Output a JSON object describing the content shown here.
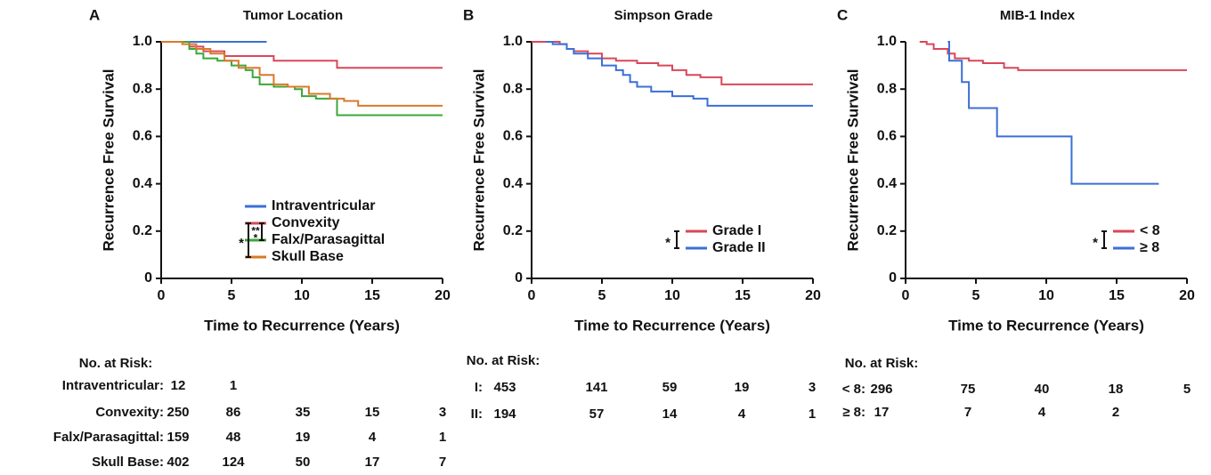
{
  "chart_data": [
    {
      "type": "step",
      "panel": "A",
      "title": "Tumor Location",
      "xlabel": "Time to Recurrence (Years)",
      "ylabel": "Recurrence Free Survival",
      "xlim": [
        0,
        20
      ],
      "ylim": [
        0,
        1
      ],
      "xticks": [
        0,
        5,
        10,
        15,
        20
      ],
      "yticks": [
        0,
        0.2,
        0.4,
        0.6,
        0.8,
        {
          "value": 1,
          "label": "1.0"
        }
      ],
      "legend": "lower right",
      "annotations": [
        "*",
        "**",
        "*"
      ],
      "series": [
        {
          "name": "Intraventricular",
          "color": "#3a6fd8",
          "x": [
            0,
            7.5
          ],
          "values": [
            1,
            1
          ]
        },
        {
          "name": "Convexity",
          "color": "#d9475a",
          "x": [
            0,
            2,
            3,
            4.5,
            8,
            12.5,
            20
          ],
          "values": [
            1,
            0.98,
            0.96,
            0.94,
            0.92,
            0.89,
            0.89
          ]
        },
        {
          "name": "Falx/Parasagittal",
          "color": "#3aa83a",
          "x": [
            0,
            2,
            2.5,
            3,
            4,
            5,
            6,
            6.5,
            7,
            8,
            9.5,
            10,
            11,
            12.5,
            20
          ],
          "values": [
            1,
            0.97,
            0.95,
            0.93,
            0.92,
            0.9,
            0.88,
            0.85,
            0.82,
            0.81,
            0.8,
            0.77,
            0.76,
            0.69,
            0.69
          ]
        },
        {
          "name": "Skull Base",
          "color": "#d9792a",
          "x": [
            0,
            1.5,
            2.5,
            3.5,
            4.5,
            5.5,
            7,
            8,
            9,
            10.5,
            12,
            13,
            14,
            20
          ],
          "values": [
            1,
            0.99,
            0.97,
            0.95,
            0.92,
            0.89,
            0.86,
            0.82,
            0.81,
            0.78,
            0.76,
            0.75,
            0.73,
            0.73
          ]
        }
      ],
      "risk_table": {
        "title": "No. at Risk:",
        "rows": [
          {
            "label": "Intraventricular:",
            "counts": [
              12,
              1
            ]
          },
          {
            "label": "Convexity:",
            "counts": [
              250,
              86,
              35,
              15,
              3
            ]
          },
          {
            "label": "Falx/Parasagittal:",
            "counts": [
              159,
              48,
              19,
              4,
              1
            ]
          },
          {
            "label": "Skull Base:",
            "counts": [
              402,
              124,
              50,
              17,
              7
            ]
          }
        ]
      }
    },
    {
      "type": "step",
      "panel": "B",
      "title": "Simpson Grade",
      "xlabel": "Time to Recurrence (Years)",
      "ylabel": "Recurrence Free Survival",
      "xlim": [
        0,
        20
      ],
      "ylim": [
        0,
        1
      ],
      "xticks": [
        0,
        5,
        10,
        15,
        20
      ],
      "yticks": [
        0,
        0.2,
        0.4,
        0.6,
        0.8,
        {
          "value": 1,
          "label": "1.0"
        }
      ],
      "legend": "lower right",
      "annotations": [
        "*"
      ],
      "series": [
        {
          "name": "Grade I",
          "color": "#d9475a",
          "x": [
            0,
            2,
            2.5,
            3,
            4,
            5,
            6,
            7.5,
            9,
            10,
            11,
            12,
            13,
            13.5,
            20
          ],
          "values": [
            1,
            0.99,
            0.97,
            0.96,
            0.95,
            0.93,
            0.92,
            0.91,
            0.9,
            0.88,
            0.86,
            0.85,
            0.85,
            0.82,
            0.82
          ]
        },
        {
          "name": "Grade II",
          "color": "#3a6fd8",
          "x": [
            1,
            1.5,
            2.5,
            3,
            4,
            5,
            6,
            6.5,
            7,
            7.5,
            8.5,
            10,
            11.5,
            12.5,
            20
          ],
          "values": [
            1,
            0.99,
            0.97,
            0.95,
            0.93,
            0.9,
            0.88,
            0.86,
            0.83,
            0.81,
            0.79,
            0.77,
            0.76,
            0.73,
            0.73
          ]
        }
      ],
      "risk_table": {
        "title": "No. at Risk:",
        "rows": [
          {
            "label": "I:",
            "counts": [
              453,
              141,
              59,
              19,
              3
            ]
          },
          {
            "label": "II:",
            "counts": [
              194,
              57,
              14,
              4,
              1
            ]
          }
        ]
      }
    },
    {
      "type": "step",
      "panel": "C",
      "title": "MIB-1 Index",
      "xlabel": "Time to Recurrence (Years)",
      "ylabel": "Recurrence Free Survival",
      "xlim": [
        0,
        20
      ],
      "ylim": [
        0,
        1
      ],
      "xticks": [
        0,
        5,
        10,
        15,
        20
      ],
      "yticks": [
        0,
        0.2,
        0.4,
        0.6,
        0.8,
        {
          "value": 1,
          "label": "1.0"
        }
      ],
      "legend": "lower right",
      "annotations": [
        "*"
      ],
      "series": [
        {
          "name": "< 8",
          "color": "#d9475a",
          "x": [
            1,
            1.5,
            2,
            3,
            3.5,
            4.5,
            5.5,
            7,
            8,
            20
          ],
          "values": [
            1,
            0.99,
            0.97,
            0.95,
            0.93,
            0.92,
            0.91,
            0.89,
            0.88,
            0.88
          ]
        },
        {
          "name": "≥ 8",
          "color": "#3a6fd8",
          "x": [
            3,
            3.1,
            4,
            4.5,
            6.5,
            11.8,
            18
          ],
          "values": [
            1,
            0.92,
            0.83,
            0.72,
            0.6,
            0.4,
            0.4
          ]
        }
      ],
      "risk_table": {
        "title": "No. at Risk:",
        "rows": [
          {
            "label": "< 8:",
            "counts": [
              296,
              75,
              40,
              18,
              5
            ]
          },
          {
            "label": "≥ 8:",
            "counts": [
              17,
              7,
              4,
              2
            ]
          }
        ]
      }
    }
  ]
}
